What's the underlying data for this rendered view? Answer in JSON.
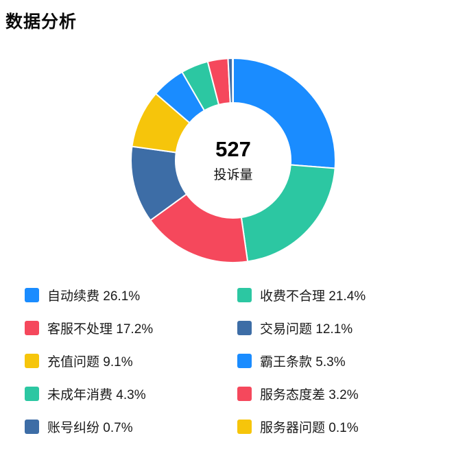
{
  "page": {
    "title": "数据分析"
  },
  "chart_data": {
    "type": "pie",
    "subtype": "donut",
    "title": "数据分析",
    "center_value": "527",
    "center_label": "投诉量",
    "legend_position": "bottom",
    "unit": "%",
    "categories": [
      "自动续费",
      "收费不合理",
      "客服不处理",
      "交易问题",
      "充值问题",
      "霸王条款",
      "未成年消费",
      "服务态度差",
      "账号纠纷",
      "服务器问题"
    ],
    "values": [
      26.1,
      21.4,
      17.2,
      12.1,
      9.1,
      5.3,
      4.3,
      3.2,
      0.7,
      0.1
    ],
    "colors": [
      "#1a8cff",
      "#2cc7a2",
      "#f5485c",
      "#3d6da6",
      "#f6c50b",
      "#1a8cff",
      "#2cc7a2",
      "#f5485c",
      "#3d6da6",
      "#f6c50b"
    ],
    "start_angle_deg": 90,
    "direction": "clockwise",
    "outer_radius_px": 149,
    "inner_radius_px": 84,
    "slice_border_color": "#ffffff",
    "slice_border_width": 2
  }
}
